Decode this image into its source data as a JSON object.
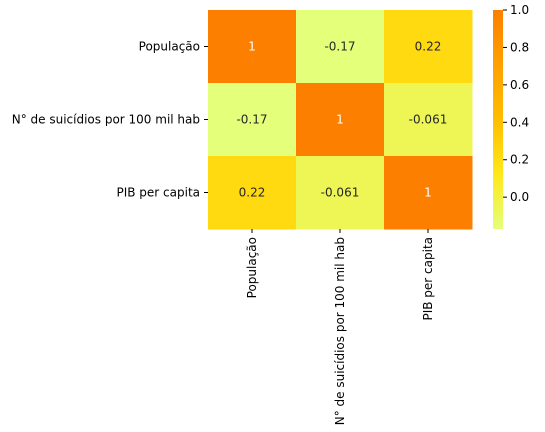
{
  "chart_data": {
    "type": "heatmap",
    "title": "",
    "xlabel": "",
    "ylabel": "",
    "row_labels": [
      "População",
      "N° de suicídios por 100 mil hab",
      "PIB per capita"
    ],
    "col_labels": [
      "População",
      "N° de suicídios por 100 mil hab",
      "PIB per capita"
    ],
    "values": [
      [
        1,
        -0.17,
        0.22
      ],
      [
        -0.17,
        1,
        -0.061
      ],
      [
        0.22,
        -0.061,
        1
      ]
    ],
    "cell_labels": [
      [
        "1",
        "-0.17",
        "0.22"
      ],
      [
        "-0.17",
        "1",
        "-0.061"
      ],
      [
        "0.22",
        "-0.061",
        "1"
      ]
    ],
    "colorbar": {
      "colormap": "Wistia",
      "vmin": -0.17,
      "vmax": 1.0,
      "ticks": [
        0.0,
        0.2,
        0.4,
        0.6,
        0.8,
        1.0
      ],
      "tick_labels": [
        "0.0",
        "0.2",
        "0.4",
        "0.6",
        "0.8",
        "1.0"
      ]
    },
    "colormap_stops": [
      "#e4ff7a",
      "#ffe81a",
      "#ffbd00",
      "#ffa000",
      "#fc7f00"
    ],
    "grid": false,
    "legend": "colorbar-right"
  }
}
